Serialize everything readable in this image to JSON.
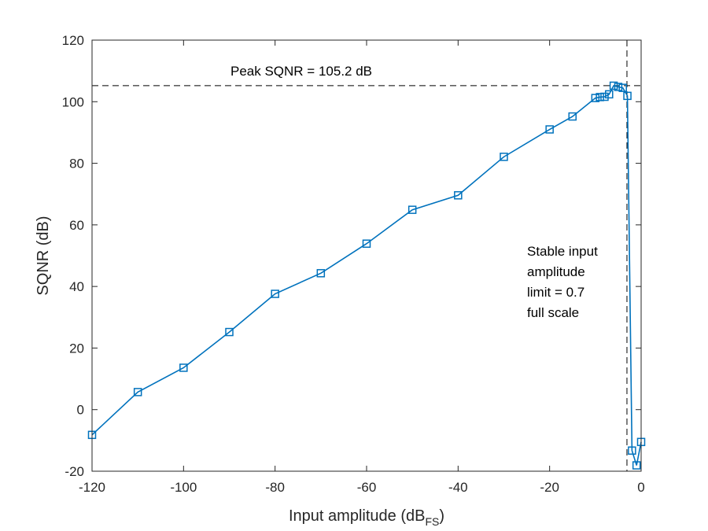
{
  "chart_data": {
    "type": "line",
    "xlabel": "Input amplitude (dB",
    "xlabel_subscript": "FS",
    "xlabel_suffix": ")",
    "ylabel": "SQNR (dB)",
    "xlim": [
      -120,
      0
    ],
    "ylim": [
      -20,
      120
    ],
    "xticks": [
      -120,
      -100,
      -80,
      -60,
      -40,
      -20,
      0
    ],
    "yticks": [
      -20,
      0,
      20,
      40,
      60,
      80,
      100,
      120
    ],
    "grid": false,
    "series": [
      {
        "color": "#0072BD",
        "marker": "square",
        "x": [
          -120,
          -110,
          -100,
          -90,
          -80,
          -70,
          -60,
          -50,
          -40,
          -30,
          -20,
          -15,
          -10,
          -9,
          -8,
          -7,
          -6,
          -5,
          -4,
          -3,
          -2,
          -1,
          0
        ],
        "y": [
          -8.2,
          5.7,
          13.6,
          25.2,
          37.6,
          44.3,
          53.9,
          64.9,
          69.6,
          82.1,
          91.0,
          95.2,
          101.2,
          101.5,
          101.6,
          102.4,
          105.2,
          104.8,
          104.5,
          101.9,
          -13.3,
          -18.1,
          -10.5
        ]
      }
    ],
    "reference_lines": [
      {
        "orientation": "horizontal",
        "value": 105.2,
        "style": "dashed",
        "color": "#000000"
      },
      {
        "orientation": "vertical",
        "value": -3.1,
        "style": "dashed",
        "color": "#000000"
      }
    ],
    "annotations": {
      "peak": "Peak SQNR = 105.2 dB",
      "stable_lines": [
        "Stable input",
        "amplitude",
        "limit = 0.7",
        "full scale"
      ]
    }
  }
}
